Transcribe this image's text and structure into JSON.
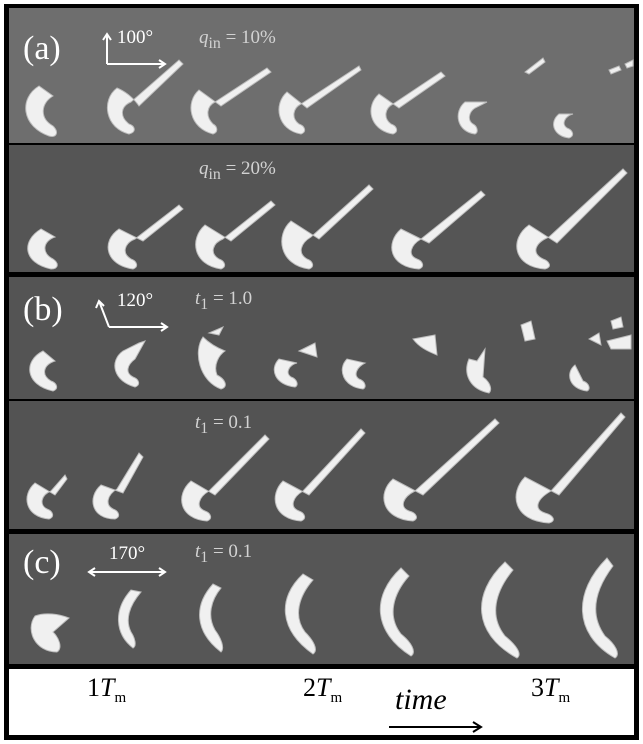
{
  "panels": {
    "a": {
      "label": "(a)",
      "angle": "100°",
      "rows": [
        {
          "param": "q",
          "sub": "in",
          "value": " = 10%"
        },
        {
          "param": "q",
          "sub": "in",
          "value": " = 20%"
        }
      ]
    },
    "b": {
      "label": "(b)",
      "angle": "120°",
      "rows": [
        {
          "param": "t",
          "sub": "1",
          "value": " = 1.0"
        },
        {
          "param": "t",
          "sub": "1",
          "value": " = 0.1"
        }
      ]
    },
    "c": {
      "label": "(c)",
      "angle": "170°",
      "rows": [
        {
          "param": "t",
          "sub": "1",
          "value": " = 0.1"
        }
      ]
    }
  },
  "time_axis": {
    "ticks": [
      {
        "num": "1",
        "sym": "T",
        "sub": "m"
      },
      {
        "num": "2",
        "sym": "T",
        "sub": "m"
      },
      {
        "num": "3",
        "sym": "T",
        "sub": "m"
      }
    ],
    "word": "time"
  },
  "colors": {
    "shape": "#f2f2f2",
    "shade": "#bdbdbd",
    "text": "#ffffff"
  }
}
